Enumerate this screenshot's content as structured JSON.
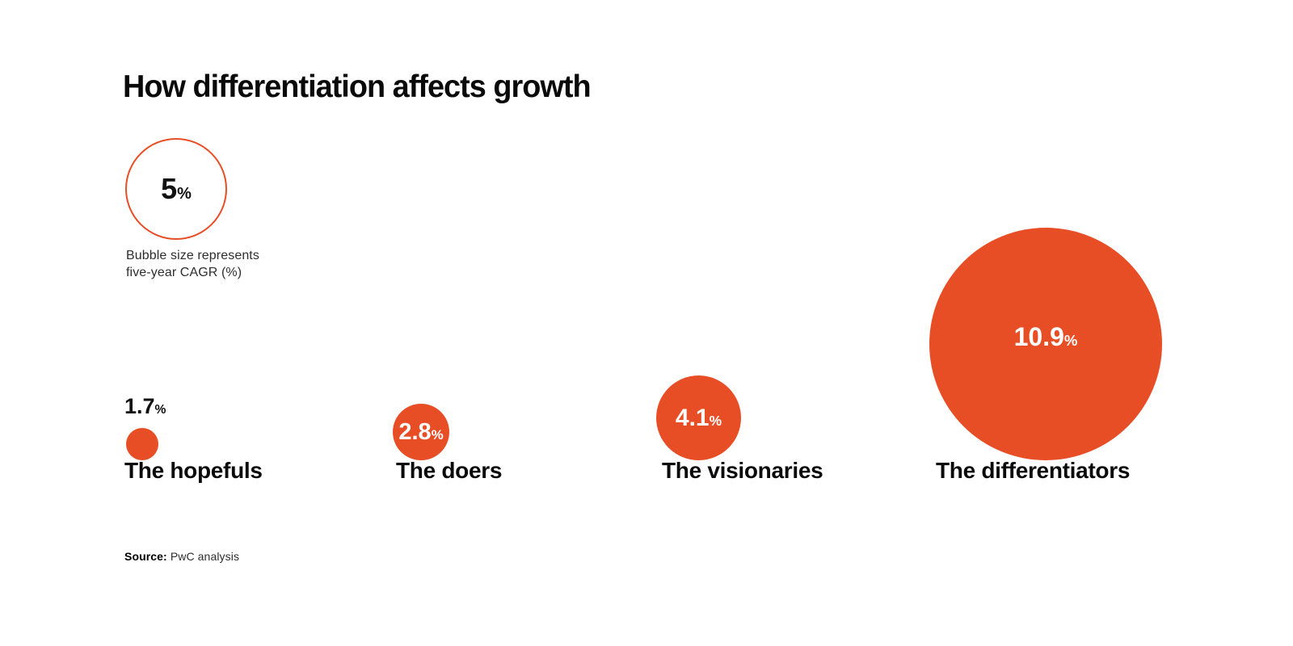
{
  "title": "How differentiation affects growth",
  "legend": {
    "value": "5",
    "unit": "%",
    "caption_line1": "Bubble size represents",
    "caption_line2": "five-year CAGR (%)"
  },
  "bubbles": [
    {
      "label": "The hopefuls",
      "value": "1.7",
      "unit": "%"
    },
    {
      "label": "The doers",
      "value": "2.8",
      "unit": "%"
    },
    {
      "label": "The visionaries",
      "value": "4.1",
      "unit": "%"
    },
    {
      "label": "The differentiators",
      "value": "10.9",
      "unit": "%"
    }
  ],
  "source": {
    "prefix": "Source:",
    "text": "PwC analysis"
  },
  "colors": {
    "bubble_fill": "#E84E26",
    "legend_stroke": "#E84E26",
    "title_text": "#0a0a0a",
    "bubble_value_text": "#ffffff"
  },
  "chart_data": {
    "type": "scatter",
    "subtype": "bubble",
    "title": "How differentiation affects growth",
    "categories": [
      "The hopefuls",
      "The doers",
      "The visionaries",
      "The differentiators"
    ],
    "values": [
      1.7,
      2.8,
      4.1,
      10.9
    ],
    "value_unit": "%",
    "size_meaning": "Bubble size represents five-year CAGR (%)",
    "legend_reference_value": 5,
    "legend_position": "top-left",
    "grid": false,
    "axes_shown": false,
    "source": "PwC analysis"
  }
}
